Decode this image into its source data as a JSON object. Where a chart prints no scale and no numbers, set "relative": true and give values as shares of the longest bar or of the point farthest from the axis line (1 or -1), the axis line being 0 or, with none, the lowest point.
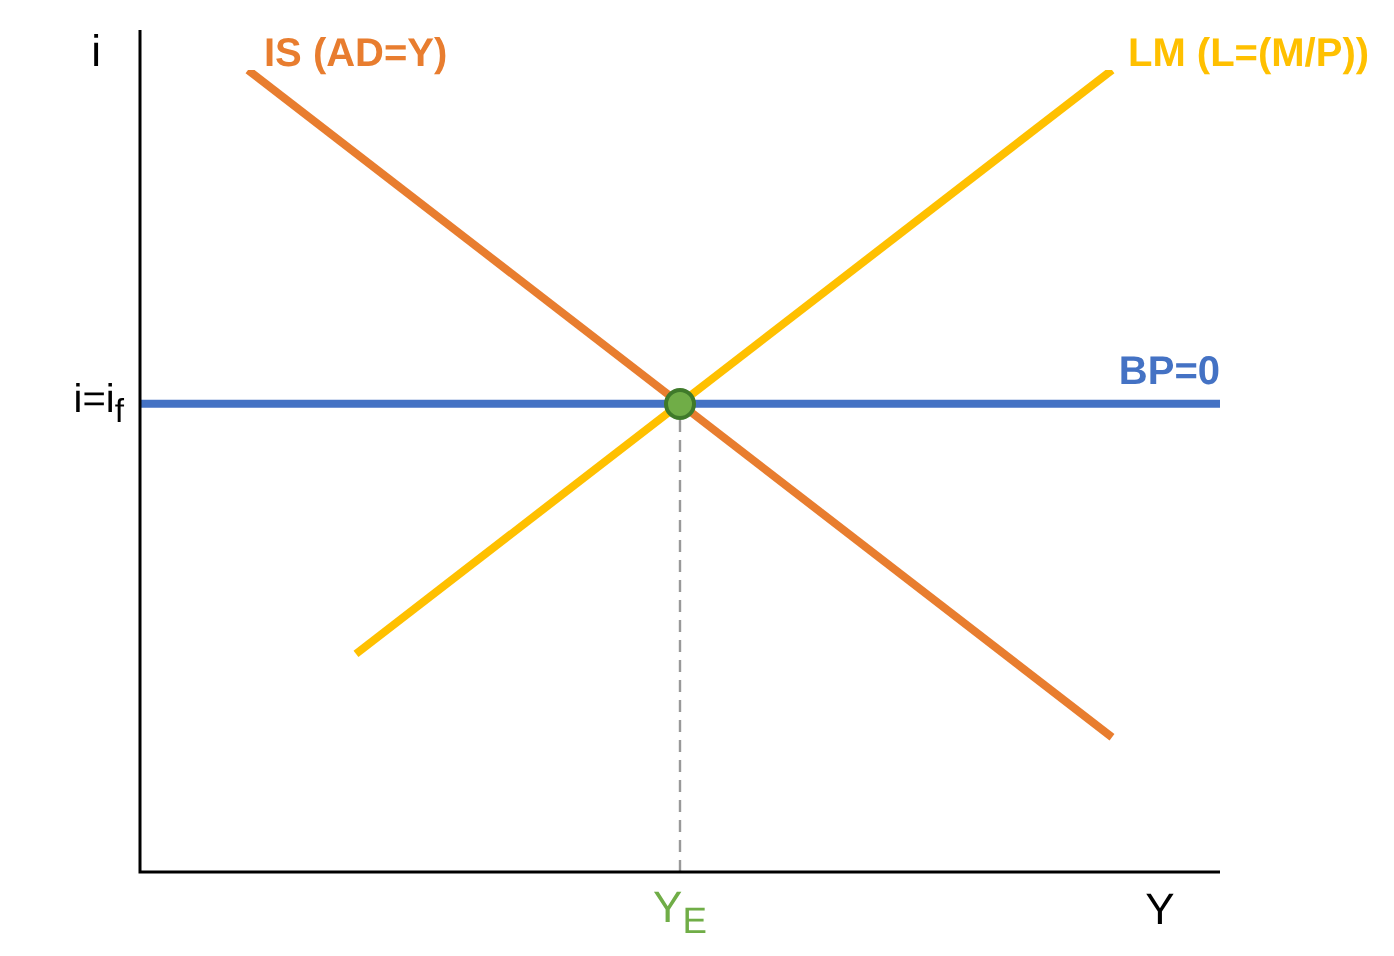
{
  "chart_data": {
    "type": "line",
    "relative": true,
    "xlabel": "Y",
    "ylabel": "i",
    "marker": "none",
    "categories": [
      null,
      null,
      null,
      null,
      null,
      null,
      null,
      null,
      null,
      null,
      null,
      null,
      null,
      null,
      null,
      null,
      null,
      null,
      null,
      null,
      null
    ],
    "series": [
      {
        "name": "IS (AD=Y)",
        "color": "#e87d2f",
        "values": [
          null,
          null,
          1.0,
          null,
          null,
          null,
          null,
          null,
          null,
          null,
          0.584,
          null,
          null,
          null,
          null,
          null,
          null,
          null,
          0.168,
          null,
          null
        ]
      },
      {
        "name": "LM (L=(M/P))",
        "color": "#ffc000",
        "values": [
          null,
          null,
          null,
          null,
          0.272,
          null,
          null,
          null,
          null,
          null,
          0.584,
          null,
          null,
          null,
          null,
          null,
          null,
          null,
          1.0,
          null,
          null
        ]
      },
      {
        "name": "BP=0",
        "color": "#4472c4",
        "values": [
          0.584,
          null,
          null,
          null,
          null,
          null,
          null,
          null,
          null,
          null,
          0.584,
          null,
          null,
          null,
          null,
          null,
          null,
          null,
          null,
          null,
          0.584
        ]
      }
    ],
    "annotations": [
      "i=i$_{f}$",
      "Y$_{E}$"
    ]
  }
}
